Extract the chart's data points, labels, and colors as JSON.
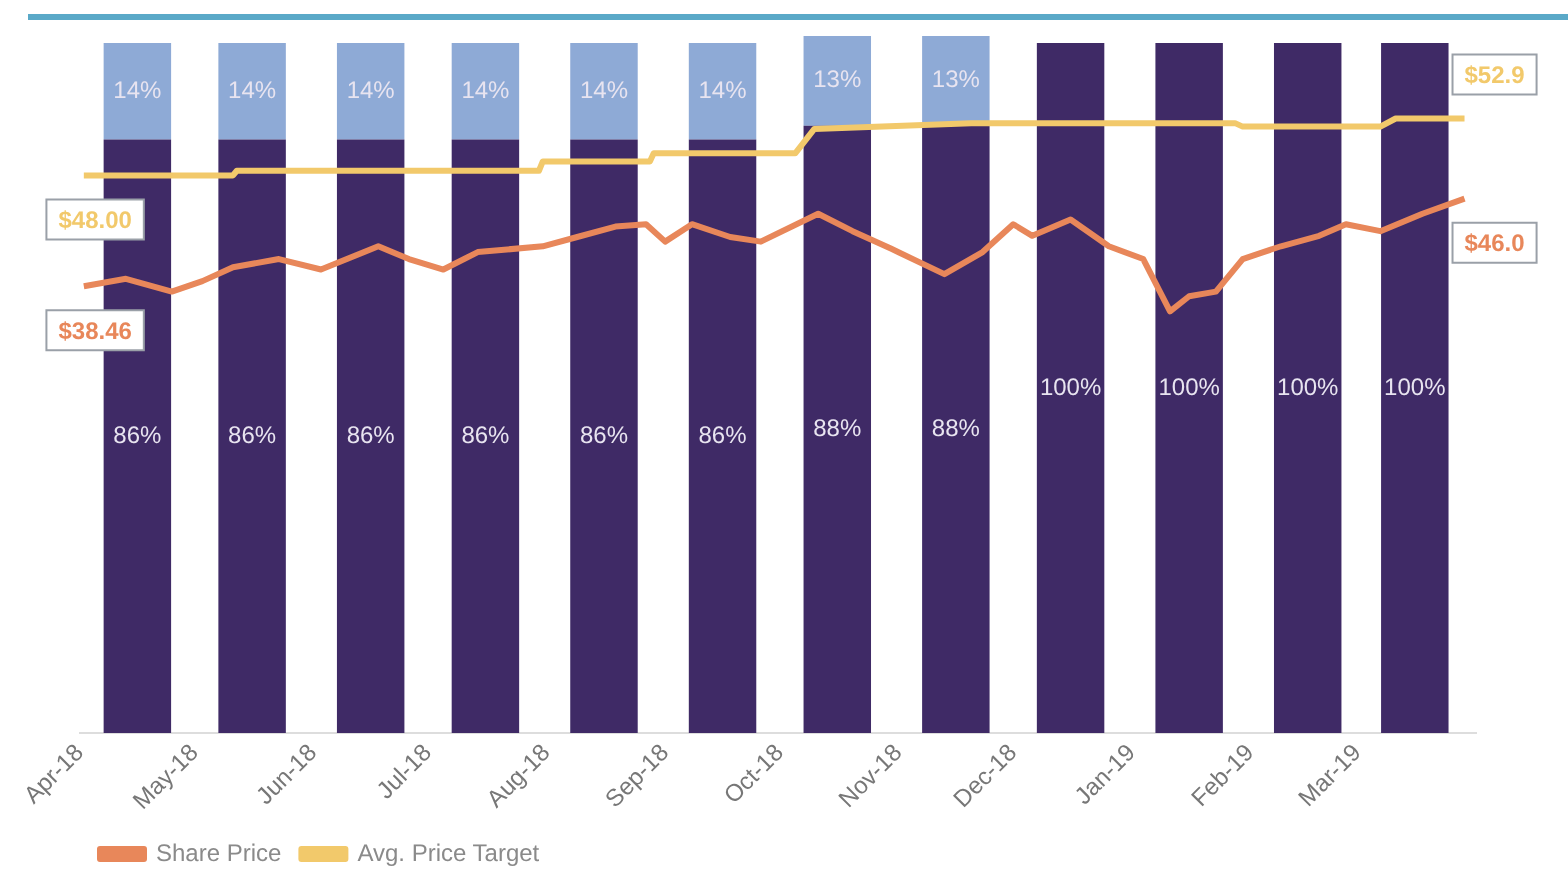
{
  "chart_data": {
    "type": "bar",
    "stacked": true,
    "tick_labels": "x",
    "marker": "none",
    "legend": "bottom left",
    "x": [
      "2018-04-16",
      "2018-05-16",
      "2018-06-16",
      "2018-07-16",
      "2018-08-16",
      "2018-09-16",
      "2018-10-16",
      "2018-11-16",
      "2018-12-16",
      "2019-01-16",
      "2019-02-16",
      "2019-03-16"
    ],
    "xlim": [
      "2018-04-01",
      "2019-04-01"
    ],
    "xticks": [
      {
        "value": "2018-04-01",
        "label": "Apr-18"
      },
      {
        "value": "2018-05-01",
        "label": "May-18"
      },
      {
        "value": "2018-06-01",
        "label": "Jun-18"
      },
      {
        "value": "2018-07-01",
        "label": "Jul-18"
      },
      {
        "value": "2018-08-01",
        "label": "Aug-18"
      },
      {
        "value": "2018-09-01",
        "label": "Sep-18"
      },
      {
        "value": "2018-10-01",
        "label": "Oct-18"
      },
      {
        "value": "2018-11-01",
        "label": "Nov-18"
      },
      {
        "value": "2018-12-01",
        "label": "Dec-18"
      },
      {
        "value": "2019-01-01",
        "label": "Jan-19"
      },
      {
        "value": "2019-02-01",
        "label": "Feb-19"
      },
      {
        "value": "2019-03-01",
        "label": "Mar-19"
      }
    ],
    "ylim": [
      0,
      101
    ],
    "y2lim": [
      0,
      60
    ],
    "series": [
      {
        "color": "#3f2a66",
        "values": [
          86,
          86,
          86,
          86,
          86,
          86,
          88,
          88,
          100,
          100,
          100,
          100
        ],
        "value_labels": [
          "86%",
          "86%",
          "86%",
          "86%",
          "86%",
          "86%",
          "88%",
          "88%",
          "100%",
          "100%",
          "100%",
          "100%"
        ]
      },
      {
        "color": "#8eaad6",
        "values": [
          14,
          14,
          14,
          14,
          14,
          14,
          13,
          13,
          null,
          null,
          null,
          null
        ],
        "value_labels": [
          "14%",
          "14%",
          "14%",
          "14%",
          "14%",
          "14%",
          "13%",
          "13%",
          null,
          null,
          null,
          null
        ]
      },
      {
        "type": "line",
        "axis": "y2",
        "name": "Share Price",
        "color": "#e8875a",
        "x": [
          "2018-04-02",
          "2018-04-13",
          "2018-04-25",
          "2018-05-03",
          "2018-05-11",
          "2018-05-23",
          "2018-06-03",
          "2018-06-18",
          "2018-06-26",
          "2018-07-05",
          "2018-07-14",
          "2018-07-31",
          "2018-08-09",
          "2018-08-19",
          "2018-08-27",
          "2018-09-01",
          "2018-09-08",
          "2018-09-18",
          "2018-09-26",
          "2018-10-11",
          "2018-10-20",
          "2018-10-30",
          "2018-11-13",
          "2018-11-23",
          "2018-12-01",
          "2018-12-06",
          "2018-12-16",
          "2018-12-26",
          "2019-01-04",
          "2019-01-11",
          "2019-01-16",
          "2019-01-23",
          "2019-01-30",
          "2019-02-09",
          "2019-02-19",
          "2019-02-26",
          "2019-03-07",
          "2019-03-18",
          "2019-03-29"
        ],
        "values": [
          38.46,
          39.1,
          38.0,
          38.9,
          40.1,
          40.8,
          39.9,
          41.9,
          40.8,
          39.9,
          41.4,
          41.9,
          42.7,
          43.6,
          43.8,
          42.3,
          43.8,
          42.7,
          42.3,
          44.7,
          43.2,
          41.7,
          39.5,
          41.4,
          43.8,
          42.8,
          44.2,
          41.9,
          40.8,
          36.3,
          37.6,
          38.0,
          40.8,
          41.9,
          42.8,
          43.8,
          43.2,
          44.7,
          46.0
        ],
        "value_labels": [
          "$38.46",
          null,
          null,
          null,
          null,
          null,
          null,
          null,
          null,
          null,
          null,
          null,
          null,
          null,
          null,
          null,
          null,
          null,
          null,
          null,
          null,
          null,
          null,
          null,
          null,
          null,
          null,
          null,
          null,
          null,
          null,
          null,
          null,
          null,
          null,
          null,
          null,
          null,
          "$46.0"
        ]
      },
      {
        "type": "line",
        "axis": "y2",
        "name": "Avg. Price Target",
        "color": "#f2c96b",
        "x": [
          "2018-04-02",
          "2018-05-11",
          "2018-05-12",
          "2018-07-30",
          "2018-07-31",
          "2018-08-28",
          "2018-08-29",
          "2018-10-05",
          "2018-10-10",
          "2018-11-20",
          "2019-01-28",
          "2019-01-30",
          "2019-03-07",
          "2019-03-11",
          "2019-03-29"
        ],
        "values": [
          48.0,
          48.0,
          48.4,
          48.4,
          49.2,
          49.2,
          49.9,
          49.9,
          52.0,
          52.5,
          52.5,
          52.2,
          52.2,
          52.9,
          52.9
        ],
        "value_labels": [
          "$48.00",
          null,
          null,
          null,
          null,
          null,
          null,
          null,
          null,
          null,
          null,
          null,
          null,
          null,
          "$52.9"
        ]
      }
    ]
  }
}
